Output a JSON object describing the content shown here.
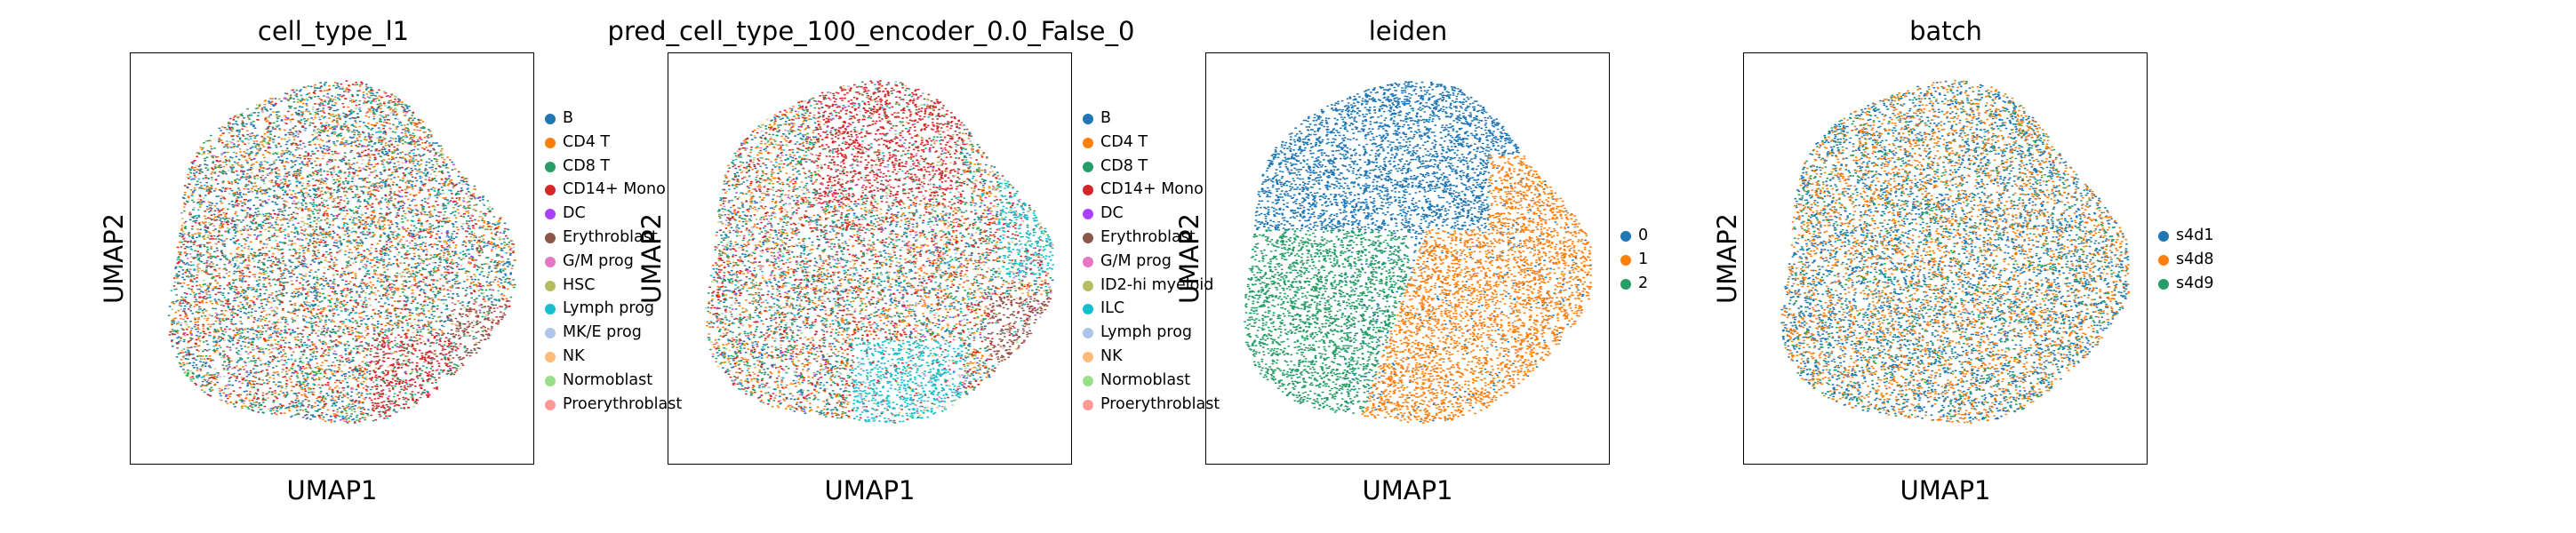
{
  "figure_axis_labels": {
    "x": "UMAP1",
    "y": "UMAP2"
  },
  "chart_data": [
    {
      "type": "scatter",
      "title": "cell_type_l1",
      "xlabel": "UMAP1",
      "ylabel": "UMAP2",
      "grid": false,
      "legend_placement": "right",
      "categories": [
        "B",
        "CD4 T",
        "CD8 T",
        "CD14+ Mono",
        "DC",
        "Erythroblast",
        "G/M prog",
        "HSC",
        "Lymph prog",
        "MK/E prog",
        "NK",
        "Normoblast",
        "Proerythroblast"
      ],
      "colors": [
        "#1f77b4",
        "#ff7f0e",
        "#279e68",
        "#d62728",
        "#aa40fc",
        "#8c564b",
        "#e377c2",
        "#b5bd61",
        "#17becf",
        "#aec7e8",
        "#ffbb78",
        "#98df8a",
        "#ff9896"
      ]
    },
    {
      "type": "scatter",
      "title": "pred_cell_type_100_encoder_0.0_False_0",
      "xlabel": "UMAP1",
      "ylabel": "UMAP2",
      "grid": false,
      "legend_placement": "right",
      "categories": [
        "B",
        "CD4 T",
        "CD8 T",
        "CD14+ Mono",
        "DC",
        "Erythroblast",
        "G/M prog",
        "ID2-hi myeloid",
        "ILC",
        "Lymph prog",
        "NK",
        "Normoblast",
        "Proerythroblast"
      ],
      "colors": [
        "#1f77b4",
        "#ff7f0e",
        "#279e68",
        "#d62728",
        "#aa40fc",
        "#8c564b",
        "#e377c2",
        "#b5bd61",
        "#17becf",
        "#aec7e8",
        "#ffbb78",
        "#98df8a",
        "#ff9896"
      ]
    },
    {
      "type": "scatter",
      "title": "leiden",
      "xlabel": "UMAP1",
      "ylabel": "UMAP2",
      "grid": false,
      "legend_placement": "right",
      "categories": [
        "0",
        "1",
        "2"
      ],
      "colors": [
        "#1f77b4",
        "#ff7f0e",
        "#279e68"
      ]
    },
    {
      "type": "scatter",
      "title": "batch",
      "xlabel": "UMAP1",
      "ylabel": "UMAP2",
      "grid": false,
      "legend_placement": "right",
      "categories": [
        "s4d1",
        "s4d8",
        "s4d9"
      ],
      "colors": [
        "#1f77b4",
        "#ff7f0e",
        "#279e68"
      ]
    }
  ]
}
